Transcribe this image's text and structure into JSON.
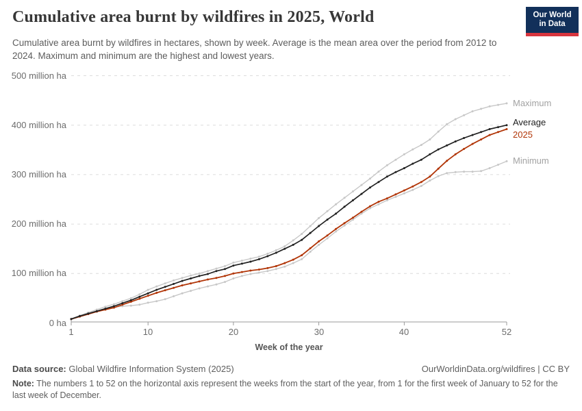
{
  "header": {
    "title": "Cumulative area burnt by wildfires in 2025, World",
    "subtitle": "Cumulative area burnt by wildfires in hectares, shown by week. Average is the mean area over the period from 2012 to 2024. Maximum and minimum are the highest and lowest years.",
    "logo": {
      "line1": "Our World",
      "line2": "in Data",
      "bg_color": "#12305a",
      "stripe_color": "#d8353e"
    }
  },
  "chart_data": {
    "type": "line",
    "title": "Cumulative area burnt by wildfires in 2025, World",
    "xlabel": "Week of the year",
    "ylabel": "",
    "unit": "million ha",
    "xlim": [
      1,
      52
    ],
    "ylim": [
      0,
      500
    ],
    "grid": "horizontal dashed",
    "legend_position": "right-end-labels",
    "x_ticks": [
      1,
      10,
      20,
      30,
      40,
      52
    ],
    "y_ticks": [
      {
        "value": 0,
        "label": "0 ha"
      },
      {
        "value": 100,
        "label": "100 million ha"
      },
      {
        "value": 200,
        "label": "200 million ha"
      },
      {
        "value": 300,
        "label": "300 million ha"
      },
      {
        "value": 400,
        "label": "400 million ha"
      },
      {
        "value": 500,
        "label": "500 million ha"
      }
    ],
    "weeks": [
      1,
      2,
      3,
      4,
      5,
      6,
      7,
      8,
      9,
      10,
      11,
      12,
      13,
      14,
      15,
      16,
      17,
      18,
      19,
      20,
      21,
      22,
      23,
      24,
      25,
      26,
      27,
      28,
      29,
      30,
      31,
      32,
      33,
      34,
      35,
      36,
      37,
      38,
      39,
      40,
      41,
      42,
      43,
      44,
      45,
      46,
      47,
      48,
      49,
      50,
      51,
      52
    ],
    "series": [
      {
        "name": "Maximum",
        "color": "#c7c7c7",
        "label_color": "#a2a2a2",
        "label_dy": 0,
        "values": [
          8,
          15,
          21,
          27,
          33,
          38,
          44,
          50,
          58,
          67,
          74,
          80,
          86,
          91,
          96,
          100,
          105,
          110,
          115,
          122,
          126,
          130,
          134,
          140,
          147,
          155,
          167,
          180,
          196,
          212,
          226,
          240,
          253,
          266,
          279,
          292,
          306,
          319,
          330,
          341,
          351,
          360,
          371,
          387,
          402,
          412,
          420,
          428,
          433,
          438,
          441,
          444
        ]
      },
      {
        "name": "Minimum",
        "color": "#c7c7c7",
        "label_color": "#a2a2a2",
        "label_dy": 0,
        "values": [
          7,
          13,
          18,
          24,
          29,
          32,
          34,
          35,
          37,
          41,
          44,
          48,
          54,
          60,
          65,
          70,
          74,
          78,
          83,
          90,
          95,
          99,
          102,
          105,
          109,
          114,
          121,
          129,
          144,
          158,
          171,
          185,
          197,
          209,
          221,
          232,
          240,
          248,
          255,
          262,
          269,
          277,
          288,
          297,
          303,
          305,
          306,
          306,
          307,
          313,
          320,
          327
        ]
      },
      {
        "name": "2025",
        "color": "#b13507",
        "label_color": "#b13507",
        "label_dy": 9,
        "values": [
          8,
          13,
          18,
          23,
          27,
          31,
          37,
          43,
          49,
          55,
          61,
          66,
          71,
          76,
          80,
          84,
          88,
          91,
          95,
          100,
          103,
          106,
          108,
          111,
          115,
          121,
          128,
          137,
          151,
          165,
          177,
          190,
          202,
          213,
          225,
          236,
          245,
          252,
          260,
          268,
          276,
          285,
          296,
          312,
          328,
          341,
          352,
          362,
          371,
          380,
          386,
          392
        ]
      },
      {
        "name": "Average",
        "color": "#212121",
        "label_color": "#1c1c1c",
        "label_dy": -4,
        "values": [
          8,
          14,
          19,
          24,
          29,
          34,
          40,
          46,
          53,
          60,
          67,
          73,
          79,
          85,
          90,
          95,
          99,
          105,
          109,
          116,
          120,
          124,
          129,
          135,
          142,
          150,
          158,
          168,
          182,
          196,
          209,
          221,
          235,
          248,
          261,
          274,
          285,
          296,
          305,
          313,
          322,
          330,
          341,
          351,
          359,
          367,
          374,
          380,
          386,
          392,
          396,
          400
        ]
      }
    ]
  },
  "footer": {
    "data_source_label": "Data source:",
    "data_source": "Global Wildfire Information System (2025)",
    "link": "OurWorldinData.org/wildfires | CC BY",
    "note_label": "Note:",
    "note": "The numbers 1 to 52 on the horizontal axis represent the weeks from the start of the year, from 1 for the first week of January to 52 for the last week of December."
  }
}
